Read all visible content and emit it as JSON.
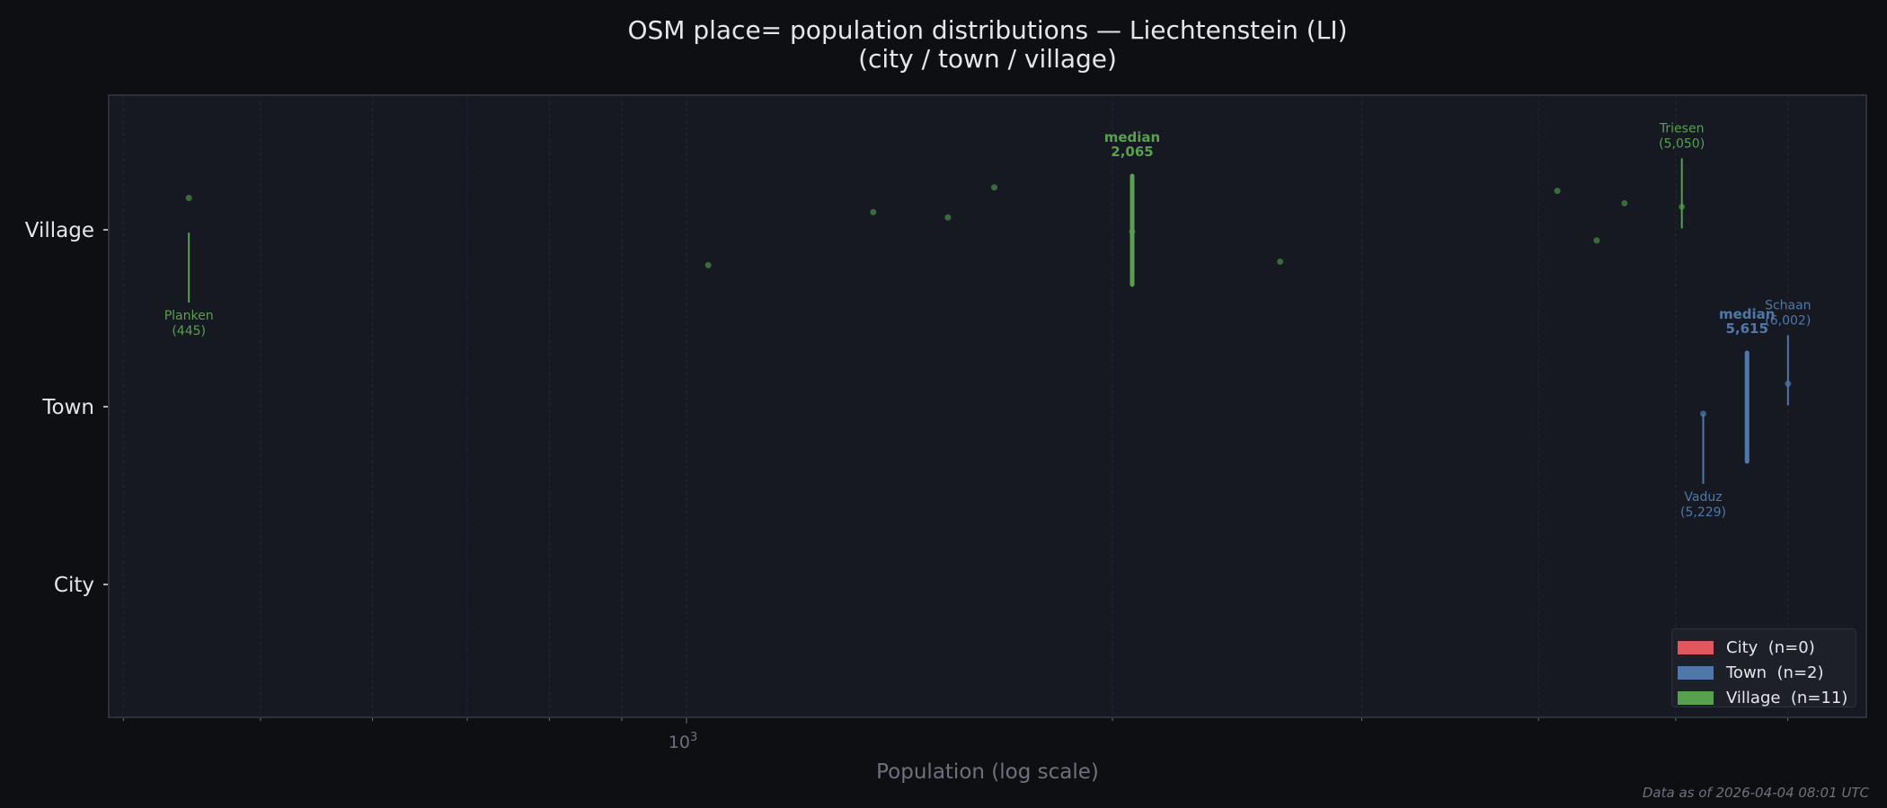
{
  "title": {
    "line1": "OSM place= population distributions — Liechtenstein (LI)",
    "line2": "(city / town / village)"
  },
  "footer": "Data as of 2026-04-04 08:01 UTC",
  "colors": {
    "page_bg": "#0e0f13",
    "plot_bg": "#161921",
    "frame": "#2e313a",
    "grid": "#242731",
    "tick_text": "#e6e6ea",
    "axis_label": "#6d717c",
    "city": "#e0585f",
    "town": "#4f78a8",
    "village": "#57a14e",
    "village_dot": "#3a6b3a",
    "town_dot": "#3c5d86"
  },
  "legend": {
    "items": [
      {
        "key": "city",
        "label": "City  (n=0)",
        "color": "#e0585f"
      },
      {
        "key": "town",
        "label": "Town  (n=2)",
        "color": "#4f78a8"
      },
      {
        "key": "village",
        "label": "Village  (n=11)",
        "color": "#57a14e"
      }
    ]
  },
  "chart_data": {
    "type": "scatter",
    "title": "OSM place= population distributions — Liechtenstein (LI)\n(city / town / village)",
    "xlabel": "Population (log scale)",
    "ylabel": "",
    "xscale": "log",
    "xlim": [
      360,
      7500
    ],
    "x_major_ticks": [
      {
        "value": 1000,
        "label": "10^3"
      }
    ],
    "x_minor_ticks": [
      400,
      500,
      600,
      700,
      800,
      900,
      2000,
      3000,
      4000,
      5000,
      6000
    ],
    "categories": [
      "City",
      "Town",
      "Village"
    ],
    "grid": true,
    "legend_position": "lower right",
    "series": [
      {
        "name": "City",
        "n": 0,
        "values": [],
        "median": null
      },
      {
        "name": "Town",
        "n": 2,
        "values": [
          5229,
          6002
        ],
        "median": 5615,
        "median_label": "median\n5,615",
        "jitter": [
          -0.04,
          0.13
        ],
        "annotations": [
          {
            "name": "Vaduz",
            "value": 5229,
            "label": "Vaduz\n(5,229)",
            "position": "below"
          },
          {
            "name": "Schaan",
            "value": 6002,
            "label": "Schaan\n(6,002)",
            "position": "above"
          }
        ]
      },
      {
        "name": "Village",
        "n": 11,
        "values": [
          445,
          1036,
          1355,
          1530,
          1650,
          2065,
          2627,
          4124,
          4397,
          4600,
          5050
        ],
        "median": 2065,
        "median_label": "median\n2,065",
        "jitter": [
          0.18,
          -0.2,
          0.1,
          0.07,
          0.24,
          -0.01,
          -0.18,
          0.22,
          -0.06,
          0.15,
          0.13
        ],
        "annotations": [
          {
            "name": "Planken",
            "value": 445,
            "label": "Planken\n(445)",
            "position": "below"
          },
          {
            "name": "Triesen",
            "value": 5050,
            "label": "Triesen\n(5,050)",
            "position": "above"
          }
        ]
      }
    ]
  }
}
